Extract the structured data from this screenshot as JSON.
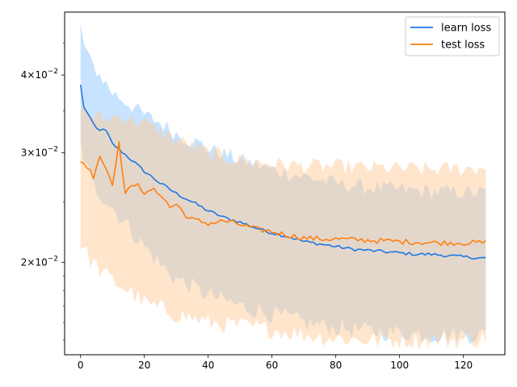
{
  "chart_data": {
    "type": "line",
    "title": "",
    "xlabel": "",
    "ylabel": "",
    "yscale": "log",
    "xlim": [
      -5,
      133
    ],
    "ylim": [
      0.0142,
      0.0505
    ],
    "xticks": [
      0,
      20,
      40,
      60,
      80,
      100,
      120
    ],
    "xtick_labels": [
      "0",
      "20",
      "40",
      "60",
      "80",
      "100",
      "120"
    ],
    "yticks": [
      0.02,
      0.03,
      0.04
    ],
    "ytick_labels": [
      {
        "mant": "2",
        "exp": "−2"
      },
      {
        "mant": "3",
        "exp": "−2"
      },
      {
        "mant": "4",
        "exp": "−2"
      }
    ],
    "legend": {
      "placement": "top-right"
    },
    "series": [
      {
        "name": "learn loss",
        "color": "#1f77e4",
        "fill_color": "#99ccff",
        "knots": [
          [
            0,
            0.0385
          ],
          [
            1,
            0.0356
          ],
          [
            3,
            0.034
          ],
          [
            5,
            0.0328
          ],
          [
            8,
            0.0325
          ],
          [
            10,
            0.031
          ],
          [
            15,
            0.0295
          ],
          [
            20,
            0.028
          ],
          [
            25,
            0.0268
          ],
          [
            30,
            0.0258
          ],
          [
            35,
            0.025
          ],
          [
            40,
            0.0242
          ],
          [
            45,
            0.0236
          ],
          [
            50,
            0.0232
          ],
          [
            55,
            0.0227
          ],
          [
            60,
            0.0223
          ],
          [
            65,
            0.022
          ],
          [
            70,
            0.0216
          ],
          [
            75,
            0.0214
          ],
          [
            80,
            0.0212
          ],
          [
            85,
            0.021
          ],
          [
            90,
            0.0209
          ],
          [
            95,
            0.0208
          ],
          [
            100,
            0.0207
          ],
          [
            105,
            0.0206
          ],
          [
            110,
            0.0206
          ],
          [
            115,
            0.0205
          ],
          [
            120,
            0.0204
          ],
          [
            127,
            0.0203
          ]
        ],
        "upper_knots": [
          [
            0,
            0.048
          ],
          [
            1,
            0.045
          ],
          [
            3,
            0.042
          ],
          [
            6,
            0.04
          ],
          [
            10,
            0.0375
          ],
          [
            15,
            0.036
          ],
          [
            20,
            0.0345
          ],
          [
            25,
            0.0335
          ],
          [
            30,
            0.0322
          ],
          [
            40,
            0.0305
          ],
          [
            50,
            0.0292
          ],
          [
            60,
            0.0282
          ],
          [
            70,
            0.0275
          ],
          [
            80,
            0.0268
          ],
          [
            90,
            0.0264
          ],
          [
            100,
            0.0262
          ],
          [
            110,
            0.026
          ],
          [
            120,
            0.0259
          ],
          [
            127,
            0.0259
          ]
        ],
        "lower_knots": [
          [
            0,
            0.031
          ],
          [
            2,
            0.0282
          ],
          [
            5,
            0.0262
          ],
          [
            10,
            0.0245
          ],
          [
            15,
            0.0228
          ],
          [
            20,
            0.0212
          ],
          [
            25,
            0.0198
          ],
          [
            30,
            0.0188
          ],
          [
            40,
            0.0177
          ],
          [
            50,
            0.017
          ],
          [
            60,
            0.0165
          ],
          [
            70,
            0.016
          ],
          [
            80,
            0.0157
          ],
          [
            90,
            0.0155
          ],
          [
            100,
            0.0154
          ],
          [
            110,
            0.0153
          ],
          [
            120,
            0.0153
          ],
          [
            127,
            0.0153
          ]
        ]
      },
      {
        "name": "test loss",
        "color": "#ff7f0e",
        "fill_color": "#ffcc99",
        "knots": [
          [
            0,
            0.0292
          ],
          [
            2,
            0.0285
          ],
          [
            4,
            0.0275
          ],
          [
            6,
            0.0297
          ],
          [
            8,
            0.0283
          ],
          [
            10,
            0.0268
          ],
          [
            12,
            0.031
          ],
          [
            14,
            0.0258
          ],
          [
            18,
            0.027
          ],
          [
            20,
            0.0255
          ],
          [
            22,
            0.0262
          ],
          [
            25,
            0.0258
          ],
          [
            28,
            0.0245
          ],
          [
            30,
            0.0248
          ],
          [
            34,
            0.0235
          ],
          [
            40,
            0.0231
          ],
          [
            45,
            0.0233
          ],
          [
            50,
            0.023
          ],
          [
            55,
            0.0226
          ],
          [
            60,
            0.0224
          ],
          [
            65,
            0.0221
          ],
          [
            70,
            0.0219
          ],
          [
            75,
            0.0218
          ],
          [
            80,
            0.0218
          ],
          [
            90,
            0.0217
          ],
          [
            100,
            0.0216
          ],
          [
            110,
            0.0215
          ],
          [
            120,
            0.0215
          ],
          [
            127,
            0.0215
          ]
        ],
        "upper_knots": [
          [
            0,
            0.036
          ],
          [
            3,
            0.0345
          ],
          [
            8,
            0.034
          ],
          [
            12,
            0.0345
          ],
          [
            20,
            0.0335
          ],
          [
            30,
            0.0315
          ],
          [
            40,
            0.03
          ],
          [
            50,
            0.0292
          ],
          [
            60,
            0.0288
          ],
          [
            70,
            0.0286
          ],
          [
            80,
            0.0285
          ],
          [
            90,
            0.0284
          ],
          [
            100,
            0.0283
          ],
          [
            110,
            0.0282
          ],
          [
            120,
            0.0283
          ],
          [
            127,
            0.0284
          ]
        ],
        "lower_knots": [
          [
            0,
            0.0215
          ],
          [
            3,
            0.0202
          ],
          [
            8,
            0.019
          ],
          [
            15,
            0.018
          ],
          [
            20,
            0.0172
          ],
          [
            30,
            0.0165
          ],
          [
            40,
            0.016
          ],
          [
            50,
            0.0158
          ],
          [
            60,
            0.0156
          ],
          [
            70,
            0.0153
          ],
          [
            80,
            0.0151
          ],
          [
            90,
            0.015
          ],
          [
            100,
            0.015
          ],
          [
            110,
            0.015
          ],
          [
            120,
            0.015
          ],
          [
            127,
            0.0151
          ]
        ]
      }
    ]
  }
}
